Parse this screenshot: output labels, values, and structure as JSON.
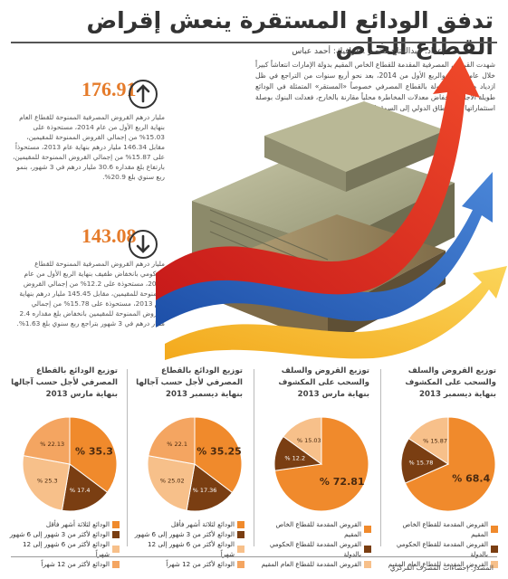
{
  "headline": "تدفق الودائع المستقرة ينعش إقراض القطاع الخاص",
  "byline": "إعداد: عبدالفتاح منتصر . غرافيك: أحمد عباس",
  "intro": "شهدت القروض المصرفية المقدمة للقطاع الخاص المقيم بدولة الإمارات انتعاشاً كبيراً خلال عام 2014 والربع الأول من 2014، بعد نحو أربع سنوات من التراجع في ظل ازدياد معدلات السيولة بالقطاع المصرفي خصوصاً «المستقر» المتمثلة في الودائع طويلة الأجل، وانخفاض معدلات المخاطرة محلياً مقارنة بالخارج، فعدلت البنوك بوصلة استثماراتها من النطاق الدولي إلى السوق المحلية.",
  "stats": [
    {
      "value": "176.91",
      "icon": "arrow-up-icon",
      "text": "مليار درهم القروض المصرفية الممنوحة للقطاع العام بنهاية الربع الأول من عام 2014، مستحوذة على 15.03% من إجمالي القروض الممنوحة للمقيمين، مقابل 146.34 مليار درهم بنهاية عام 2013، مستحوذاً على 15.87% من إجمالي القروض الممنوحة للمقيمين، بارتفاع بلغ مقداره 30.6 مليار درهم في 3 شهور، بنمو ربع سنوي بلغ 20.9%."
    },
    {
      "value": "143.08",
      "icon": "arrow-down-icon",
      "text": "مليار درهم القروض المصرفية الممنوحة للقطاع الحكومي بانخفاض طفيف بنهاية الربع الأول من عام 2014، مستحوذة على 12.2% من إجمالي القروض الممنوحة للمقيمين، مقابل 145.45 مليار درهم بنهاية عام 2013، مستحوذة على 15.78% من إجمالي القروض الممنوحة للمقيمين بانخفاض بلغ مقداره 2.4 مليار درهم في 3 شهور بتراجع ربع سنوي بلغ 1.63%."
    }
  ],
  "colors": {
    "dark": "#7a3e12",
    "orange": "#f08a2c",
    "light": "#f7c08a",
    "accent": "#e57b2a"
  },
  "chart_data": [
    {
      "type": "pie",
      "title": "توزيع القروض والسلف والسحب على المكشوف بنهاية ديسمبر 2013",
      "slices": [
        {
          "name": "القروض المقدمة للقطاع الخاص المقيم",
          "value": 68.4,
          "label": "% 68.4",
          "color": "#f08a2c"
        },
        {
          "name": "القروض المقدمة للقطاع الحكومي بالدولة",
          "value": 15.78,
          "label": "% 15.78",
          "color": "#7a3e12"
        },
        {
          "name": "القروض المقدمة للقطاع العام المقيم",
          "value": 15.87,
          "label": "% 15.87",
          "color": "#f7c08a"
        }
      ]
    },
    {
      "type": "pie",
      "title": "توزيع القروض والسلف والسحب على المكشوف بنهاية مارس 2013",
      "slices": [
        {
          "name": "القروض المقدمة للقطاع الخاص المقيم",
          "value": 72.81,
          "label": "% 72.81",
          "color": "#f08a2c"
        },
        {
          "name": "القروض المقدمة للقطاع الحكومي بالدولة",
          "value": 12.2,
          "label": "% 12.2",
          "color": "#7a3e12"
        },
        {
          "name": "القروض المقدمة للقطاع العام المقيم",
          "value": 15.03,
          "label": "% 15.03",
          "color": "#f7c08a"
        }
      ]
    },
    {
      "type": "pie",
      "title": "توزيع الودائع بالقطاع المصرفي لأجل حسب آجالها بنهاية ديسمبر 2013",
      "slices": [
        {
          "name": "الودائع لثلاثة أشهر فأقل",
          "value": 35.25,
          "label": "% 35.25",
          "color": "#f08a2c"
        },
        {
          "name": "الودائع لأكثر من 3 شهور إلى 6 شهور",
          "value": 17.36,
          "label": "% 17.36",
          "color": "#7a3e12"
        },
        {
          "name": "الودائع لأكثر من 6 شهور إلى 12 شهراً",
          "value": 25.02,
          "label": "% 25.02",
          "color": "#f7c08a"
        },
        {
          "name": "الودائع لأكثر من 12 شهراً",
          "value": 22.1,
          "label": "% 22.1",
          "color": "#f4a561"
        }
      ]
    },
    {
      "type": "pie",
      "title": "توزيع الودائع بالقطاع المصرفي لأجل حسب آجالها بنهاية مارس 2013",
      "slices": [
        {
          "name": "الودائع لثلاثة أشهر فأقل",
          "value": 35.3,
          "label": "% 35.3",
          "color": "#f08a2c"
        },
        {
          "name": "الودائع لأكثر من 3 شهور إلى 6 شهور",
          "value": 17.4,
          "label": "% 17.4",
          "color": "#7a3e12"
        },
        {
          "name": "الودائع لأكثر من 6 شهور إلى 12 شهراً",
          "value": 25.3,
          "label": "% 25.3",
          "color": "#f7c08a"
        },
        {
          "name": "الودائع لأكثر من 12 شهراً",
          "value": 22.13,
          "label": "% 22.13",
          "color": "#f4a561"
        }
      ]
    }
  ],
  "source": "المصدر: إحصاءات المصرف المركزي"
}
